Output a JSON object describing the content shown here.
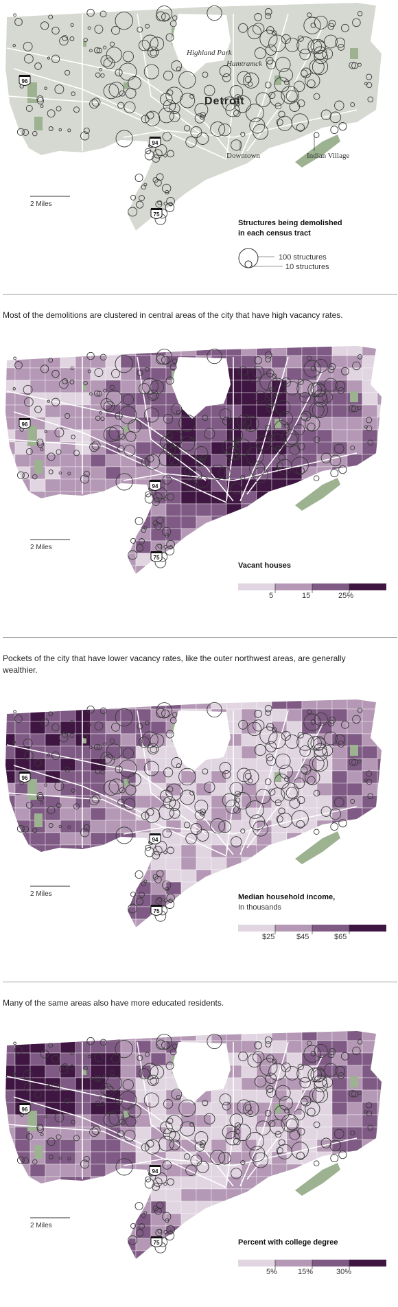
{
  "labels": {
    "highland_park": "Highland Park",
    "hamtramck": "Hamtramck",
    "detroit": "Detroit",
    "downtown": "Downtown",
    "indian_village": "Indian Village",
    "scale": "2 Miles",
    "hwy_96": "96",
    "hwy_94": "94",
    "hwy_75": "75"
  },
  "captions": {
    "vacancy": "Most of the demolitions are clustered in central areas of the city that have high vacancy rates.",
    "income": "Pockets of the city that have lower vacancy rates, like the outer northwest areas, are generally wealthier.",
    "college": "Many of the same areas also have more educated residents."
  },
  "legends": {
    "demolition": {
      "title_line1": "Structures being demolished",
      "title_line2": "in each census tract",
      "large": "100 structures",
      "small": "10 structures"
    },
    "vacancy": {
      "title": "Vacant houses",
      "subtitle": "",
      "ticks": [
        "5",
        "15",
        "25%"
      ]
    },
    "income": {
      "title": "Median household income,",
      "subtitle": "In thousands",
      "ticks": [
        "$25",
        "$45",
        "$65"
      ]
    },
    "college": {
      "title": "Percent with college degree",
      "subtitle": "",
      "ticks": [
        "5%",
        "15%",
        "30%"
      ]
    }
  },
  "colors": {
    "base": "#d6d9d1",
    "park": "#9cb290",
    "road": "#ffffff",
    "circle": "#3a3a3a",
    "purple_scale": [
      "#e0d5e0",
      "#b498b5",
      "#7f5a84",
      "#3f1642"
    ]
  }
}
